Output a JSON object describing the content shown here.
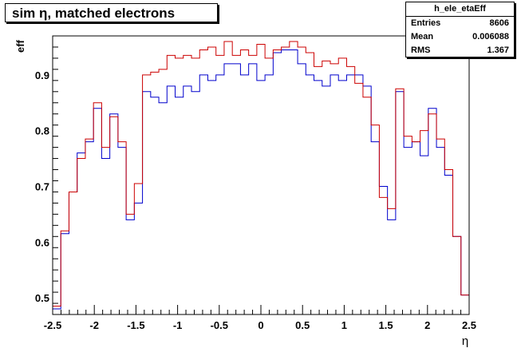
{
  "title": "sim η,  matched electrons",
  "stats": {
    "name": "h_ele_etaEff",
    "rows": [
      {
        "label": "Entries",
        "value": "8606"
      },
      {
        "label": "Mean",
        "value": "0.006088"
      },
      {
        "label": "RMS",
        "value": "1.367"
      }
    ]
  },
  "chart_data": {
    "type": "line",
    "drawstyle": "steps",
    "title": "sim η,  matched electrons",
    "xlabel": "η",
    "ylabel": "eff",
    "xlim": [
      -2.5,
      2.5
    ],
    "ylim": [
      0.47,
      0.97
    ],
    "x_bin_edges_start": -2.5,
    "bin_width": 0.1,
    "xticks": [
      "-2.5",
      "-2",
      "-1.5",
      "-1",
      "-0.5",
      "0",
      "0.5",
      "1",
      "1.5",
      "2",
      "2.5"
    ],
    "xtick_values": [
      -2.5,
      -2,
      -1.5,
      -1,
      -0.5,
      0,
      0.5,
      1,
      1.5,
      2,
      2.5
    ],
    "yticks": [
      "0.5",
      "0.6",
      "0.7",
      "0.8",
      "0.9"
    ],
    "ytick_values": [
      0.5,
      0.6,
      0.7,
      0.8,
      0.9
    ],
    "grid": false,
    "series": [
      {
        "color": "#0000cc",
        "values": [
          0.48,
          0.615,
          0.69,
          0.76,
          0.78,
          0.84,
          0.75,
          0.83,
          0.77,
          0.64,
          0.67,
          0.87,
          0.86,
          0.85,
          0.88,
          0.86,
          0.88,
          0.87,
          0.9,
          0.89,
          0.9,
          0.92,
          0.92,
          0.9,
          0.92,
          0.89,
          0.9,
          0.94,
          0.945,
          0.945,
          0.92,
          0.9,
          0.89,
          0.88,
          0.9,
          0.89,
          0.9,
          0.9,
          0.88,
          0.78,
          0.7,
          0.64,
          0.87,
          0.77,
          0.78,
          0.755,
          0.84,
          0.77,
          0.72,
          0.61,
          0.505
        ]
      },
      {
        "color": "#cc0000",
        "values": [
          0.485,
          0.62,
          0.69,
          0.75,
          0.785,
          0.85,
          0.77,
          0.825,
          0.78,
          0.65,
          0.705,
          0.9,
          0.905,
          0.91,
          0.935,
          0.93,
          0.935,
          0.93,
          0.945,
          0.95,
          0.935,
          0.96,
          0.935,
          0.945,
          0.935,
          0.955,
          0.93,
          0.945,
          0.95,
          0.96,
          0.95,
          0.94,
          0.915,
          0.925,
          0.92,
          0.93,
          0.915,
          0.885,
          0.86,
          0.81,
          0.68,
          0.66,
          0.875,
          0.79,
          0.78,
          0.8,
          0.83,
          0.785,
          0.73,
          0.61,
          0.505
        ]
      }
    ]
  }
}
